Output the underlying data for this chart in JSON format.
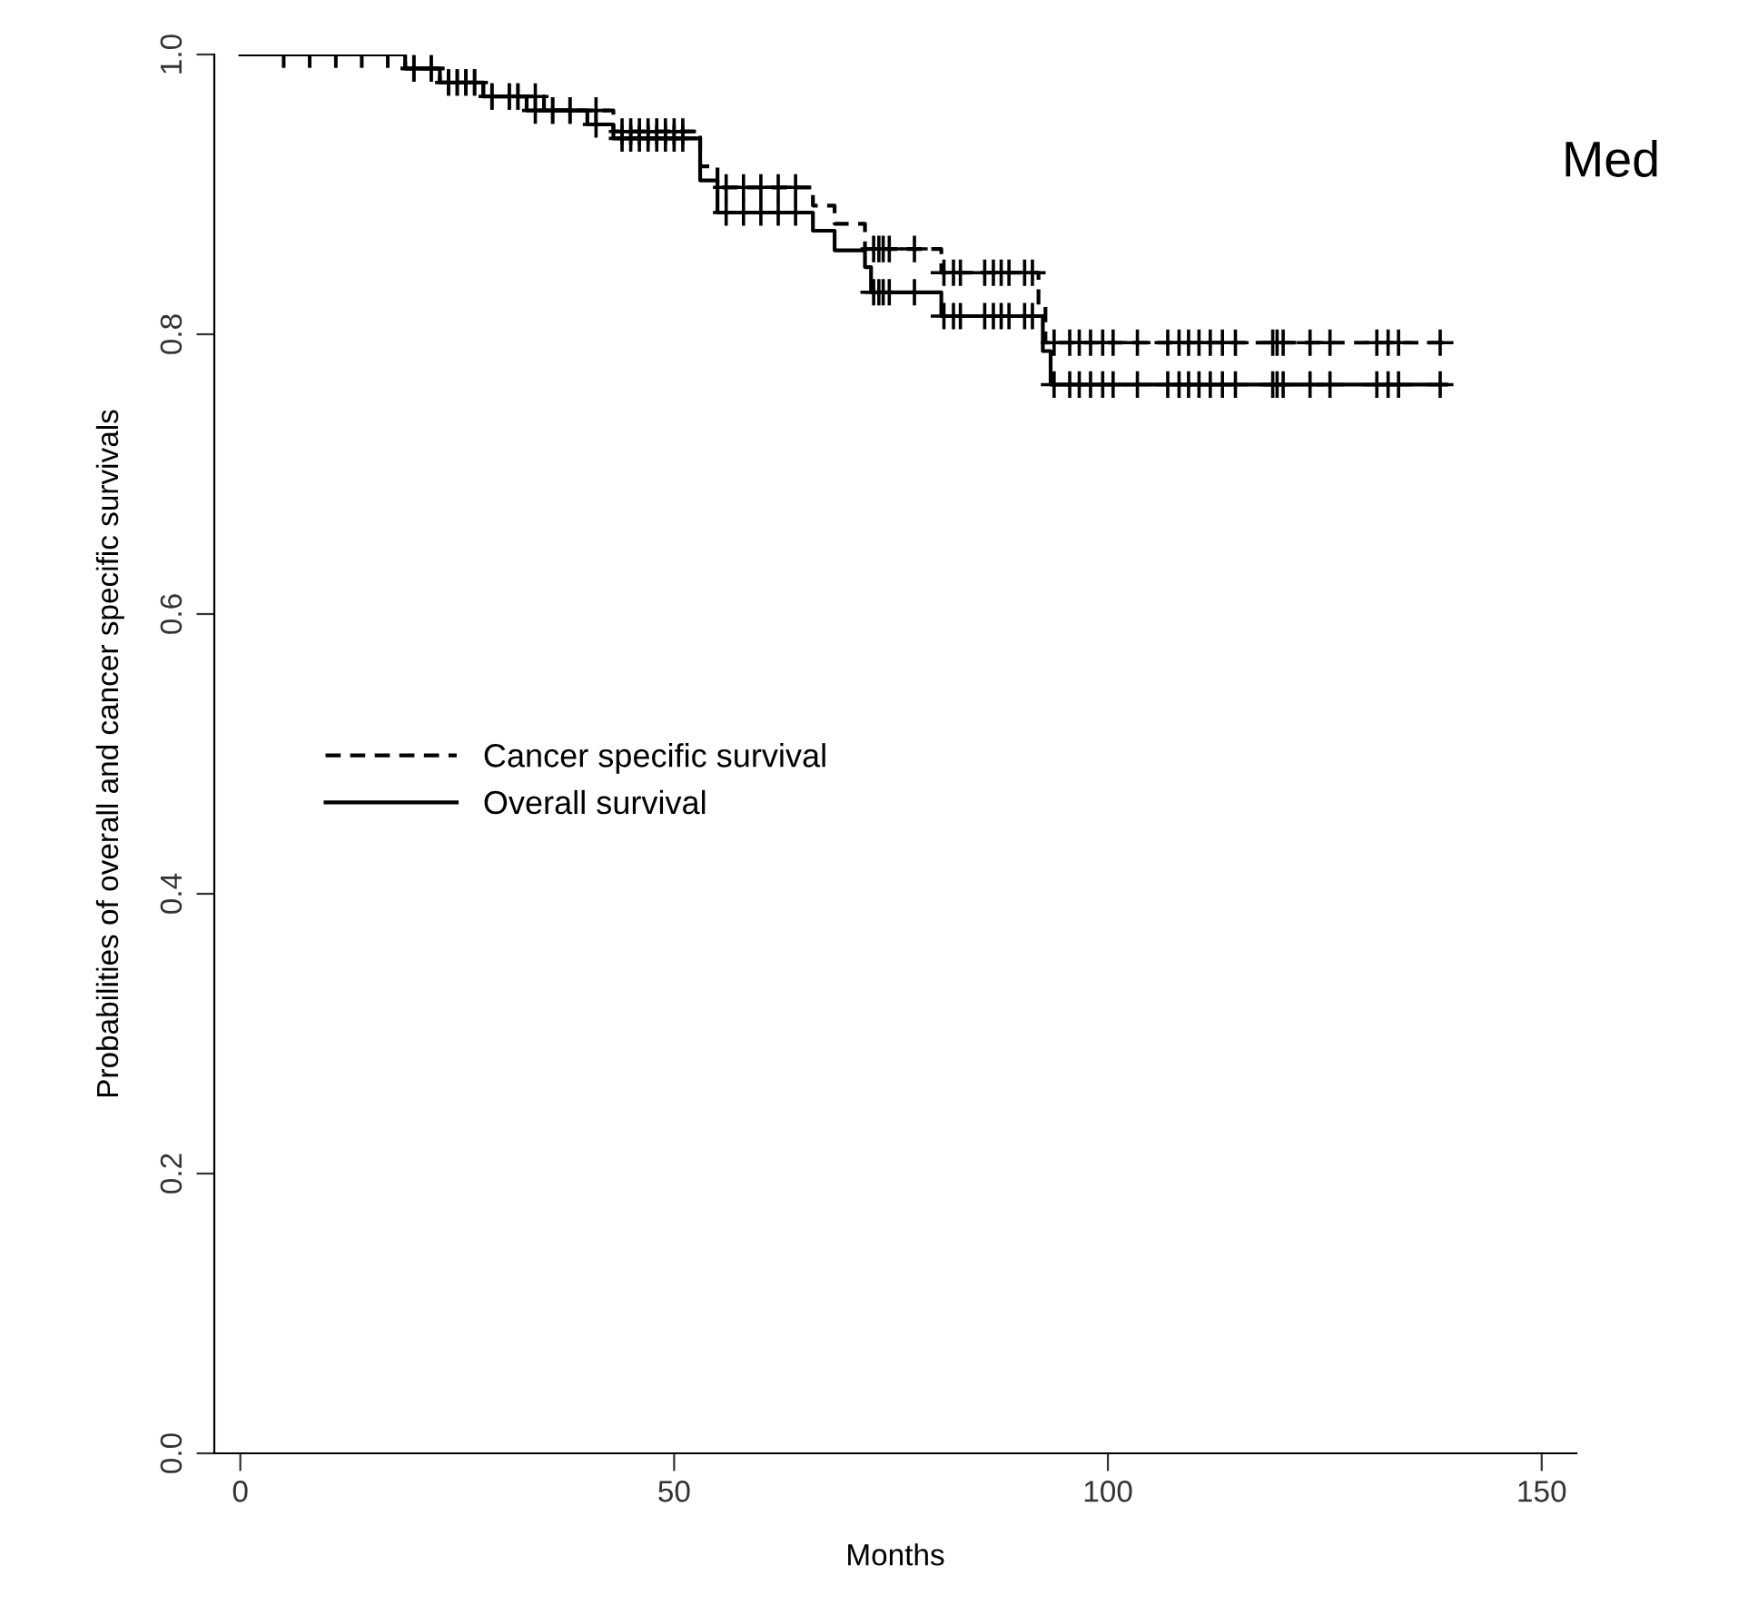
{
  "chart_data": {
    "type": "step",
    "xlabel": "Months",
    "ylabel": "Probabilities of overall and cancer specific survivals",
    "annotations": [
      "Med"
    ],
    "xlim": [
      -3,
      154
    ],
    "xticks": [
      0,
      50,
      100,
      150
    ],
    "ylim": [
      0,
      1.0
    ],
    "yticks": [
      {
        "value": 0,
        "label": "0.0"
      },
      0.2,
      0.4,
      0.6,
      0.8,
      {
        "value": 1,
        "label": "1.0"
      }
    ],
    "grid": false,
    "legend": "left",
    "series": [
      {
        "name": "Cancer specific survival",
        "color": "#000000",
        "line_style": "dashed",
        "x": [
          0,
          19,
          23,
          28,
          35,
          43,
          53,
          55,
          66,
          68.5,
          72,
          80.8,
          92,
          92.8,
          139
        ],
        "values": [
          1.0,
          0.99,
          0.98,
          0.97,
          0.96,
          0.945,
          0.92,
          0.905,
          0.892,
          0.879,
          0.861,
          0.844,
          0.821,
          0.794,
          0.794
        ]
      },
      {
        "name": "Overall survival",
        "color": "#000000",
        "line_style": "solid",
        "x": [
          0,
          19,
          23,
          28,
          33,
          40,
          43,
          53,
          55,
          66,
          68.5,
          72,
          72.7,
          80.8,
          92.5,
          93.4,
          139
        ],
        "values": [
          1.0,
          0.99,
          0.98,
          0.97,
          0.96,
          0.95,
          0.94,
          0.91,
          0.887,
          0.874,
          0.86,
          0.848,
          0.83,
          0.813,
          0.788,
          0.764,
          0.764
        ]
      },
      {
        "type": "scatter",
        "color": "#000000",
        "marker": "cross",
        "x": [
          5,
          8,
          11,
          14,
          17,
          20,
          22,
          24,
          25,
          26,
          27,
          29,
          31,
          32,
          34,
          36,
          38,
          41,
          44,
          45,
          46,
          47,
          48,
          49,
          50,
          51,
          56,
          58,
          60,
          62,
          64,
          73,
          73.6,
          74.1,
          74.8,
          77.7,
          81.1,
          82.2,
          83,
          85.8,
          86.8,
          87.7,
          88.6,
          90.4,
          91.3,
          93.8,
          95.6,
          96.7,
          98,
          99.4,
          100.6,
          103.4,
          106.9,
          108.2,
          109.3,
          110.5,
          111.8,
          113.2,
          114.7,
          119,
          119.5,
          120.2,
          123.3,
          125.6,
          131,
          132.3,
          133.5,
          138.3
        ],
        "values": [
          1.0,
          1.0,
          1.0,
          1.0,
          1.0,
          0.99,
          0.99,
          0.98,
          0.98,
          0.98,
          0.98,
          0.97,
          0.97,
          0.97,
          0.97,
          0.96,
          0.96,
          0.96,
          0.945,
          0.945,
          0.945,
          0.945,
          0.945,
          0.945,
          0.945,
          0.945,
          0.905,
          0.905,
          0.905,
          0.905,
          0.905,
          0.861,
          0.861,
          0.861,
          0.861,
          0.861,
          0.844,
          0.844,
          0.844,
          0.844,
          0.844,
          0.844,
          0.844,
          0.844,
          0.844,
          0.794,
          0.794,
          0.794,
          0.794,
          0.794,
          0.794,
          0.794,
          0.794,
          0.794,
          0.794,
          0.794,
          0.794,
          0.794,
          0.794,
          0.794,
          0.794,
          0.794,
          0.794,
          0.794,
          0.794,
          0.794,
          0.794,
          0.794
        ]
      },
      {
        "type": "scatter",
        "color": "#000000",
        "marker": "cross",
        "x": [
          5,
          8,
          11,
          14,
          17,
          20,
          22,
          24,
          25,
          26,
          27,
          29,
          31,
          32,
          34,
          36,
          38,
          41,
          44,
          45,
          46,
          47,
          48,
          49,
          50,
          51,
          56,
          58,
          60,
          62,
          64,
          73,
          73.6,
          74.1,
          74.8,
          77.7,
          81.1,
          82.2,
          83,
          85.8,
          86.8,
          87.7,
          88.6,
          90.4,
          91.3,
          93.8,
          95.6,
          96.7,
          98,
          99.4,
          100.6,
          103.4,
          106.9,
          108.2,
          109.3,
          110.5,
          111.8,
          113.2,
          114.7,
          119,
          119.5,
          120.2,
          123.3,
          125.6,
          131,
          132.3,
          133.5,
          138.3
        ],
        "values": [
          1.0,
          1.0,
          1.0,
          1.0,
          1.0,
          0.99,
          0.99,
          0.98,
          0.98,
          0.98,
          0.98,
          0.97,
          0.97,
          0.97,
          0.96,
          0.96,
          0.96,
          0.95,
          0.94,
          0.94,
          0.94,
          0.94,
          0.94,
          0.94,
          0.94,
          0.94,
          0.887,
          0.887,
          0.887,
          0.887,
          0.887,
          0.83,
          0.83,
          0.83,
          0.83,
          0.83,
          0.813,
          0.813,
          0.813,
          0.813,
          0.813,
          0.813,
          0.813,
          0.813,
          0.813,
          0.764,
          0.764,
          0.764,
          0.764,
          0.764,
          0.764,
          0.764,
          0.764,
          0.764,
          0.764,
          0.764,
          0.764,
          0.764,
          0.764,
          0.764,
          0.764,
          0.764,
          0.764,
          0.764,
          0.764,
          0.764,
          0.764,
          0.764
        ]
      }
    ]
  }
}
